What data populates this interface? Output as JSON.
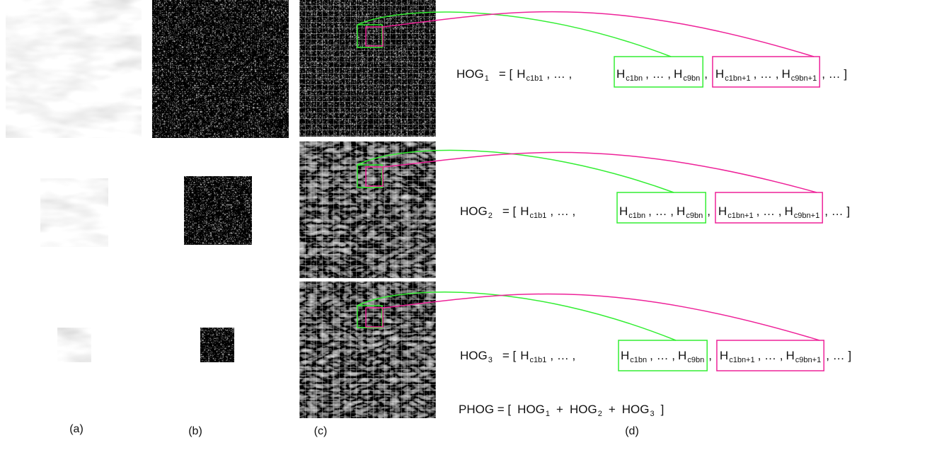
{
  "panel_labels": [
    "(a)",
    "(b)",
    "(c)",
    "(d)"
  ],
  "rows": [
    {
      "label": {
        "text": "HOG",
        "sub": "1"
      },
      "prefix": "= [",
      "first": {
        "text": "H",
        "sub": "c1b1"
      },
      "sep1": ", … ,",
      "green": [
        {
          "text": "H",
          "sub": "c1bn"
        },
        {
          "text": ", … ,"
        },
        {
          "text": "H",
          "sub": "c9bn"
        }
      ],
      "sep2": ",",
      "magenta": [
        {
          "text": "H",
          "sub": "c1bn+1"
        },
        {
          "text": ", … ,"
        },
        {
          "text": "H",
          "sub": "c9bn+1"
        }
      ],
      "suffix": ", … ]"
    },
    {
      "label": {
        "text": "HOG",
        "sub": "2"
      },
      "prefix": "= [",
      "first": {
        "text": "H",
        "sub": "c1b1"
      },
      "sep1": ", … ,",
      "green": [
        {
          "text": "H",
          "sub": "c1bn"
        },
        {
          "text": ", … ,"
        },
        {
          "text": "H",
          "sub": "c9bn"
        }
      ],
      "sep2": ",",
      "magenta": [
        {
          "text": "H",
          "sub": "c1bn+1"
        },
        {
          "text": ", … ,"
        },
        {
          "text": "H",
          "sub": "c9bn+1"
        }
      ],
      "suffix": ", … ]"
    },
    {
      "label": {
        "text": "HOG",
        "sub": "3"
      },
      "prefix": "= [",
      "first": {
        "text": "H",
        "sub": "c1b1"
      },
      "sep1": ", … ,",
      "green": [
        {
          "text": "H",
          "sub": "c1bn"
        },
        {
          "text": ", … ,"
        },
        {
          "text": "H",
          "sub": "c9bn"
        }
      ],
      "sep2": ",",
      "magenta": [
        {
          "text": "H",
          "sub": "c1bn+1"
        },
        {
          "text": ", … ,"
        },
        {
          "text": "H",
          "sub": "c9bn+1"
        }
      ],
      "suffix": ", … ]"
    }
  ],
  "phog": [
    {
      "text": "PHOG = ["
    },
    {
      "text": "HOG",
      "sub": "1"
    },
    {
      "text": "+"
    },
    {
      "text": "HOG",
      "sub": "2"
    },
    {
      "text": "+"
    },
    {
      "text": "HOG",
      "sub": "3"
    },
    {
      "text": "]"
    }
  ]
}
